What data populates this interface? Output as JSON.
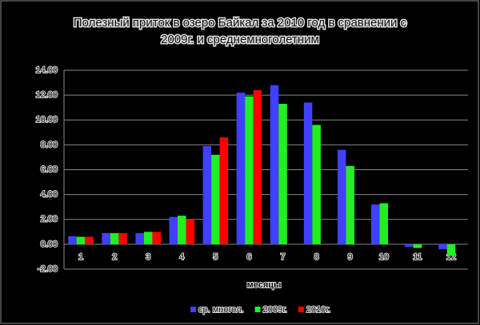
{
  "chart_data": {
    "type": "bar",
    "title": [
      "Полезный приток в озеро Байкал за 2010 год в сравнении с",
      "2009г. и среднемноголетним"
    ],
    "x_label": "месяцы",
    "categories": [
      "1",
      "2",
      "3",
      "4",
      "5",
      "6",
      "7",
      "8",
      "9",
      "10",
      "11",
      "12"
    ],
    "series": [
      {
        "name": "ср. многол.",
        "color": "#4040ff",
        "values": [
          0.65,
          0.9,
          0.9,
          2.2,
          7.9,
          12.2,
          12.8,
          11.4,
          7.6,
          3.2,
          -0.2,
          -0.4
        ]
      },
      {
        "name": "2009г.",
        "color": "#22ee22",
        "values": [
          0.6,
          0.9,
          1.0,
          2.3,
          7.2,
          11.9,
          11.3,
          9.6,
          6.3,
          3.3,
          -0.3,
          -0.9
        ]
      },
      {
        "name": "2010г.",
        "color": "#ff0000",
        "values": [
          0.6,
          0.9,
          1.0,
          2.0,
          8.6,
          12.4,
          null,
          null,
          null,
          null,
          null,
          null
        ]
      }
    ],
    "ylim": [
      -2,
      14
    ],
    "yticks": [
      {
        "value": -2,
        "label": "-2.00"
      },
      {
        "value": 0,
        "label": "0.00"
      },
      {
        "value": 2,
        "label": "2.00"
      },
      {
        "value": 4,
        "label": "4.00"
      },
      {
        "value": 6,
        "label": "6.00"
      },
      {
        "value": 8,
        "label": "8.00"
      },
      {
        "value": 10,
        "label": "10.00"
      },
      {
        "value": 12,
        "label": "12.00"
      },
      {
        "value": 14,
        "label": "14.00"
      }
    ],
    "grid": true
  }
}
